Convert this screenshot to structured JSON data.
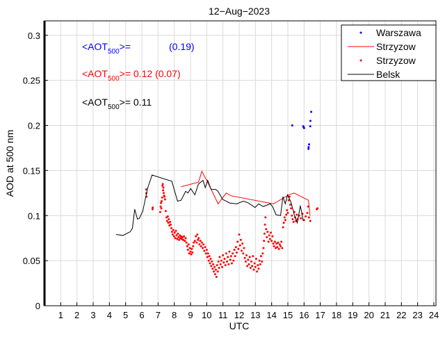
{
  "chart_data": {
    "type": "line",
    "title": "12−Aug−2023",
    "xlabel": "UTC",
    "ylabel": "AOD at 500 nm",
    "xlim": [
      0,
      24.13
    ],
    "ylim": [
      0,
      0.316
    ],
    "xticks": [
      1,
      2,
      3,
      4,
      5,
      6,
      7,
      8,
      9,
      10,
      11,
      12,
      13,
      14,
      15,
      16,
      17,
      18,
      19,
      20,
      21,
      22,
      23,
      24
    ],
    "yticks": [
      0,
      0.05,
      0.1,
      0.15,
      0.2,
      0.25,
      0.3
    ],
    "ytick_labels": [
      "0",
      "0.05",
      "0.1",
      "0.15",
      "0.2",
      "0.25",
      "0.3"
    ],
    "grid": true,
    "legend_position": "top-right",
    "annotations": [
      {
        "prefix": "<AOT",
        "sub": "500",
        "suffix": ">=",
        "value": "(0.19)",
        "color": "#0000ff"
      },
      {
        "prefix": "<AOT",
        "sub": "500",
        "suffix": ">= 0.12 (0.07)",
        "value": "",
        "color": "#ff0000"
      },
      {
        "prefix": "<AOT",
        "sub": "500",
        "suffix": ">= 0.11",
        "value": "",
        "color": "#000000"
      }
    ],
    "series": [
      {
        "name": "Warszawa",
        "kind": "points",
        "color": "#0000ff",
        "points": [
          [
            15.27,
            0.2
          ],
          [
            15.95,
            0.199
          ],
          [
            15.98,
            0.198
          ],
          [
            16.0,
            0.197
          ],
          [
            16.38,
            0.199
          ],
          [
            16.39,
            0.205
          ],
          [
            16.44,
            0.215
          ],
          [
            16.31,
            0.179
          ],
          [
            16.28,
            0.176
          ],
          [
            16.27,
            0.174
          ]
        ]
      },
      {
        "name": "Strzyzow",
        "kind": "line",
        "color": "#ff0000",
        "points": [
          [
            8.42,
            0.132
          ],
          [
            9.49,
            0.137
          ],
          [
            9.7,
            0.149
          ],
          [
            10.06,
            0.137
          ],
          [
            10.7,
            0.113
          ],
          [
            11.2,
            0.125
          ],
          [
            11.49,
            0.122
          ],
          [
            14.12,
            0.113
          ],
          [
            15.05,
            0.123
          ],
          [
            15.38,
            0.125
          ],
          [
            16.27,
            0.117
          ],
          [
            16.37,
            0.1
          ]
        ]
      },
      {
        "name": "Strzyzow",
        "kind": "points",
        "color": "#ff0000",
        "points": [
          [
            6.27,
            0.129
          ],
          [
            6.28,
            0.125
          ],
          [
            6.29,
            0.121
          ],
          [
            6.66,
            0.107
          ],
          [
            6.67,
            0.109
          ],
          [
            7.13,
            0.104
          ],
          [
            7.16,
            0.11
          ],
          [
            7.18,
            0.114
          ],
          [
            7.2,
            0.108
          ],
          [
            7.22,
            0.116
          ],
          [
            7.25,
            0.12
          ],
          [
            7.27,
            0.133
          ],
          [
            7.29,
            0.135
          ],
          [
            7.31,
            0.128
          ],
          [
            7.33,
            0.131
          ],
          [
            7.35,
            0.125
          ],
          [
            7.37,
            0.122
          ],
          [
            7.4,
            0.121
          ],
          [
            7.43,
            0.118
          ],
          [
            7.47,
            0.105
          ],
          [
            7.52,
            0.098
          ],
          [
            7.56,
            0.094
          ],
          [
            7.6,
            0.099
          ],
          [
            7.63,
            0.092
          ],
          [
            7.66,
            0.096
          ],
          [
            7.7,
            0.089
          ],
          [
            7.74,
            0.093
          ],
          [
            7.78,
            0.09
          ],
          [
            7.82,
            0.086
          ],
          [
            7.86,
            0.082
          ],
          [
            7.9,
            0.079
          ],
          [
            7.94,
            0.084
          ],
          [
            7.98,
            0.077
          ],
          [
            8.02,
            0.081
          ],
          [
            8.06,
            0.075
          ],
          [
            8.1,
            0.083
          ],
          [
            8.14,
            0.078
          ],
          [
            8.18,
            0.074
          ],
          [
            8.22,
            0.08
          ],
          [
            8.26,
            0.076
          ],
          [
            8.3,
            0.073
          ],
          [
            8.34,
            0.078
          ],
          [
            8.38,
            0.075
          ],
          [
            8.42,
            0.077
          ],
          [
            8.46,
            0.074
          ],
          [
            8.5,
            0.076
          ],
          [
            8.55,
            0.073
          ],
          [
            8.6,
            0.077
          ],
          [
            8.65,
            0.072
          ],
          [
            8.7,
            0.075
          ],
          [
            8.75,
            0.07
          ],
          [
            8.8,
            0.066
          ],
          [
            8.84,
            0.062
          ],
          [
            8.88,
            0.068
          ],
          [
            8.92,
            0.058
          ],
          [
            8.96,
            0.064
          ],
          [
            9.0,
            0.06
          ],
          [
            9.04,
            0.057
          ],
          [
            9.08,
            0.063
          ],
          [
            9.12,
            0.059
          ],
          [
            9.16,
            0.066
          ],
          [
            9.2,
            0.07
          ],
          [
            9.27,
            0.072
          ],
          [
            9.33,
            0.077
          ],
          [
            9.38,
            0.07
          ],
          [
            9.42,
            0.079
          ],
          [
            9.46,
            0.073
          ],
          [
            9.5,
            0.075
          ],
          [
            9.55,
            0.068
          ],
          [
            9.6,
            0.072
          ],
          [
            9.65,
            0.066
          ],
          [
            9.7,
            0.07
          ],
          [
            9.75,
            0.064
          ],
          [
            9.8,
            0.068
          ],
          [
            9.85,
            0.061
          ],
          [
            9.9,
            0.065
          ],
          [
            9.95,
            0.058
          ],
          [
            10.0,
            0.062
          ],
          [
            10.04,
            0.054
          ],
          [
            10.08,
            0.058
          ],
          [
            10.12,
            0.05
          ],
          [
            10.16,
            0.055
          ],
          [
            10.2,
            0.047
          ],
          [
            10.24,
            0.052
          ],
          [
            10.28,
            0.044
          ],
          [
            10.32,
            0.049
          ],
          [
            10.36,
            0.041
          ],
          [
            10.4,
            0.046
          ],
          [
            10.44,
            0.038
          ],
          [
            10.48,
            0.043
          ],
          [
            10.52,
            0.035
          ],
          [
            10.56,
            0.04
          ],
          [
            10.6,
            0.032
          ],
          [
            10.64,
            0.045
          ],
          [
            10.68,
            0.038
          ],
          [
            10.72,
            0.049
          ],
          [
            10.76,
            0.042
          ],
          [
            10.8,
            0.054
          ],
          [
            10.85,
            0.046
          ],
          [
            10.9,
            0.05
          ],
          [
            10.95,
            0.043
          ],
          [
            11.0,
            0.056
          ],
          [
            11.05,
            0.048
          ],
          [
            11.1,
            0.052
          ],
          [
            11.15,
            0.045
          ],
          [
            11.2,
            0.058
          ],
          [
            11.25,
            0.049
          ],
          [
            11.3,
            0.054
          ],
          [
            11.35,
            0.046
          ],
          [
            11.4,
            0.06
          ],
          [
            11.45,
            0.051
          ],
          [
            11.5,
            0.055
          ],
          [
            11.55,
            0.047
          ],
          [
            11.6,
            0.058
          ],
          [
            11.65,
            0.05
          ],
          [
            11.7,
            0.062
          ],
          [
            11.75,
            0.055
          ],
          [
            11.8,
            0.065
          ],
          [
            11.85,
            0.059
          ],
          [
            11.9,
            0.071
          ],
          [
            11.95,
            0.063
          ],
          [
            12.0,
            0.079
          ],
          [
            12.05,
            0.067
          ],
          [
            12.1,
            0.073
          ],
          [
            12.15,
            0.061
          ],
          [
            12.2,
            0.069
          ],
          [
            12.25,
            0.058
          ],
          [
            12.3,
            0.064
          ],
          [
            12.35,
            0.053
          ],
          [
            12.4,
            0.049
          ],
          [
            12.45,
            0.056
          ],
          [
            12.5,
            0.044
          ],
          [
            12.55,
            0.051
          ],
          [
            12.6,
            0.046
          ],
          [
            12.65,
            0.054
          ],
          [
            12.7,
            0.042
          ],
          [
            12.75,
            0.049
          ],
          [
            12.8,
            0.044
          ],
          [
            12.85,
            0.055
          ],
          [
            12.9,
            0.04
          ],
          [
            12.95,
            0.047
          ],
          [
            13.0,
            0.043
          ],
          [
            13.05,
            0.052
          ],
          [
            13.1,
            0.038
          ],
          [
            13.15,
            0.045
          ],
          [
            13.2,
            0.041
          ],
          [
            13.25,
            0.05
          ],
          [
            13.3,
            0.046
          ],
          [
            13.35,
            0.055
          ],
          [
            13.4,
            0.049
          ],
          [
            13.45,
            0.058
          ],
          [
            13.5,
            0.064
          ],
          [
            13.53,
            0.072
          ],
          [
            13.56,
            0.08
          ],
          [
            13.59,
            0.09
          ],
          [
            13.62,
            0.098
          ],
          [
            13.66,
            0.085
          ],
          [
            13.7,
            0.076
          ],
          [
            13.75,
            0.082
          ],
          [
            13.8,
            0.071
          ],
          [
            13.85,
            0.078
          ],
          [
            13.9,
            0.074
          ],
          [
            13.95,
            0.081
          ],
          [
            14.0,
            0.072
          ],
          [
            14.05,
            0.077
          ],
          [
            14.1,
            0.069
          ],
          [
            14.15,
            0.066
          ],
          [
            14.2,
            0.071
          ],
          [
            14.25,
            0.064
          ],
          [
            14.3,
            0.069
          ],
          [
            14.35,
            0.065
          ],
          [
            14.4,
            0.07
          ],
          [
            14.45,
            0.063
          ],
          [
            14.5,
            0.068
          ],
          [
            14.55,
            0.066
          ],
          [
            14.6,
            0.071
          ],
          [
            14.65,
            0.064
          ],
          [
            14.7,
            0.087
          ],
          [
            14.75,
            0.092
          ],
          [
            14.8,
            0.098
          ],
          [
            14.85,
            0.095
          ],
          [
            14.9,
            0.101
          ],
          [
            14.95,
            0.106
          ],
          [
            15.0,
            0.103
          ],
          [
            15.05,
            0.117
          ],
          [
            15.1,
            0.121
          ],
          [
            15.15,
            0.112
          ],
          [
            15.2,
            0.108
          ],
          [
            15.25,
            0.1
          ],
          [
            15.3,
            0.096
          ],
          [
            15.35,
            0.093
          ],
          [
            15.4,
            0.104
          ],
          [
            15.45,
            0.098
          ],
          [
            15.5,
            0.094
          ],
          [
            15.55,
            0.101
          ],
          [
            15.6,
            0.096
          ],
          [
            15.7,
            0.1
          ],
          [
            15.8,
            0.097
          ],
          [
            15.9,
            0.102
          ],
          [
            16.0,
            0.095
          ],
          [
            16.1,
            0.099
          ],
          [
            16.2,
            0.103
          ],
          [
            16.25,
            0.11
          ],
          [
            16.3,
            0.098
          ],
          [
            16.38,
            0.094
          ],
          [
            16.78,
            0.107
          ],
          [
            16.83,
            0.108
          ]
        ]
      },
      {
        "name": "Belsk",
        "kind": "line",
        "color": "#000000",
        "points": [
          [
            4.42,
            0.079
          ],
          [
            4.85,
            0.078
          ],
          [
            5.06,
            0.08
          ],
          [
            5.28,
            0.082
          ],
          [
            5.42,
            0.086
          ],
          [
            5.56,
            0.107
          ],
          [
            5.73,
            0.096
          ],
          [
            5.85,
            0.097
          ],
          [
            6.06,
            0.105
          ],
          [
            6.35,
            0.13
          ],
          [
            6.63,
            0.145
          ],
          [
            7.85,
            0.138
          ],
          [
            8.2,
            0.116
          ],
          [
            8.42,
            0.117
          ],
          [
            8.7,
            0.127
          ],
          [
            8.84,
            0.125
          ],
          [
            9.01,
            0.13
          ],
          [
            9.27,
            0.123
          ],
          [
            9.49,
            0.135
          ],
          [
            9.77,
            0.139
          ],
          [
            9.91,
            0.131
          ],
          [
            10.06,
            0.139
          ],
          [
            10.27,
            0.129
          ],
          [
            10.56,
            0.129
          ],
          [
            10.69,
            0.127
          ],
          [
            10.98,
            0.118
          ],
          [
            11.41,
            0.114
          ],
          [
            11.84,
            0.113
          ],
          [
            12.27,
            0.116
          ],
          [
            12.56,
            0.114
          ],
          [
            12.98,
            0.109
          ],
          [
            13.2,
            0.113
          ],
          [
            13.48,
            0.11
          ],
          [
            13.91,
            0.113
          ],
          [
            14.06,
            0.11
          ],
          [
            14.27,
            0.101
          ],
          [
            14.55,
            0.1
          ],
          [
            14.7,
            0.121
          ],
          [
            14.84,
            0.113
          ],
          [
            14.98,
            0.123
          ],
          [
            15.19,
            0.115
          ],
          [
            15.41,
            0.1
          ],
          [
            15.58,
            0.092
          ],
          [
            15.77,
            0.111
          ],
          [
            15.95,
            0.094
          ]
        ]
      }
    ]
  }
}
